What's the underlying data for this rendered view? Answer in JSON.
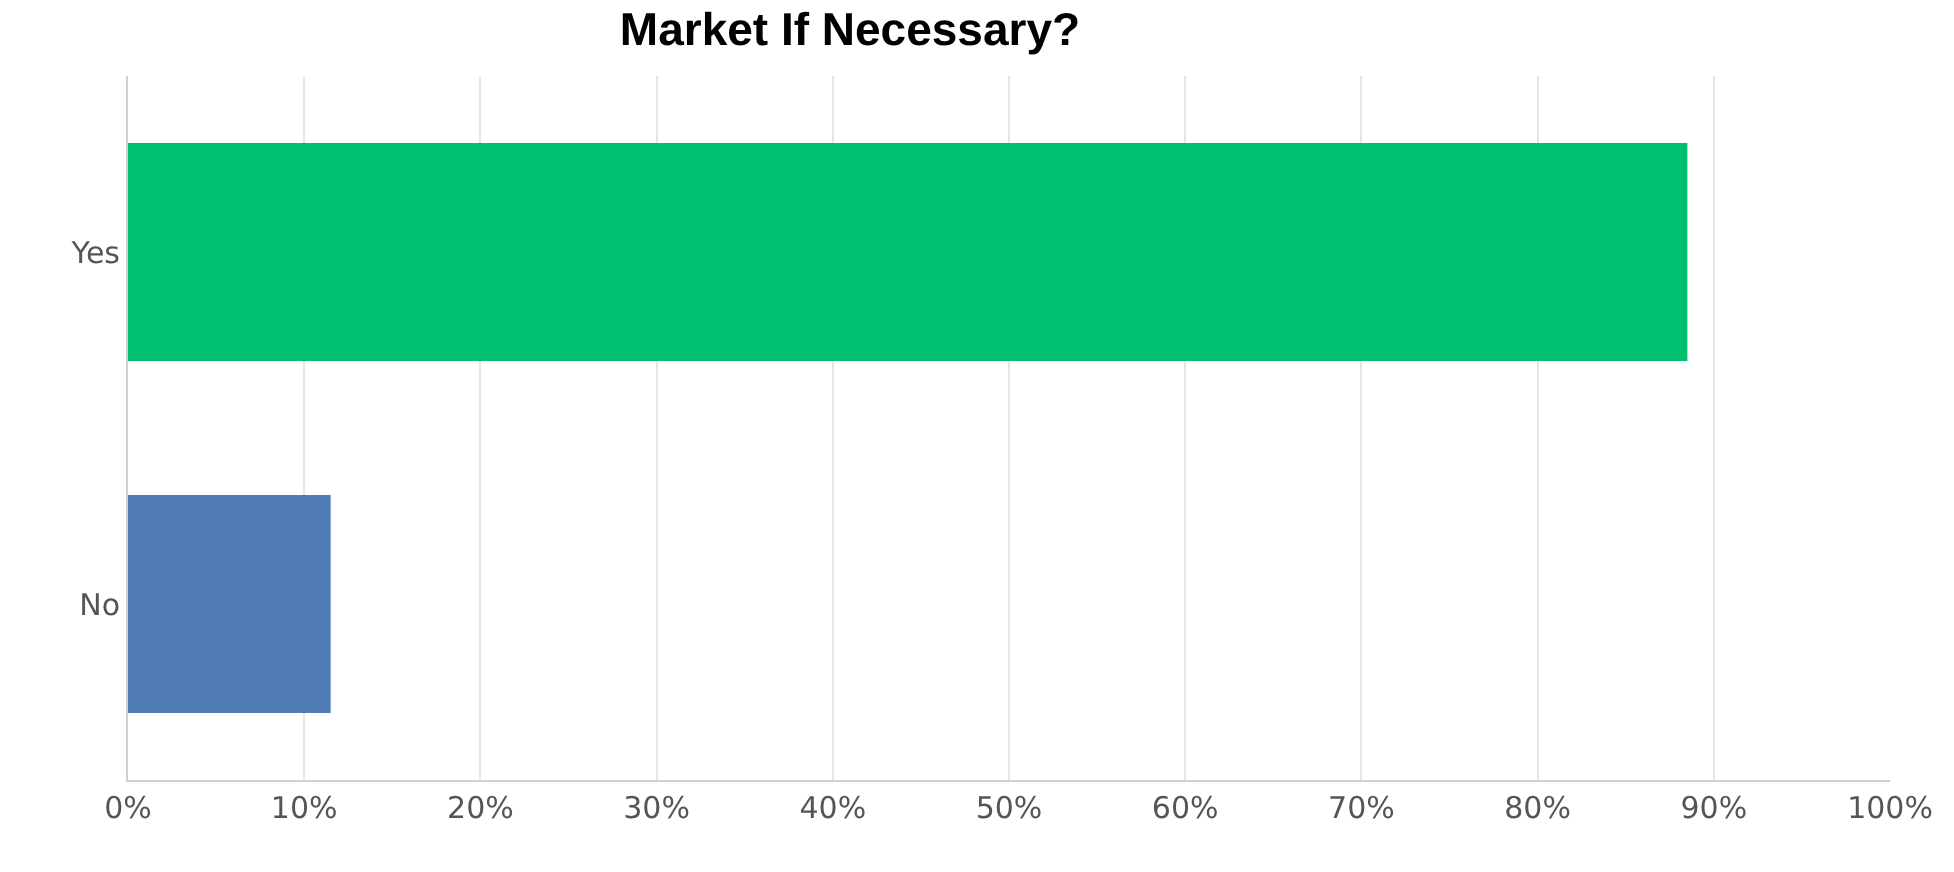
{
  "chart_data": {
    "type": "bar",
    "orientation": "horizontal",
    "title": "Market If Necessary?",
    "categories": [
      "Yes",
      "No"
    ],
    "values": [
      88.5,
      11.5
    ],
    "colors": [
      "#00bf6f",
      "#507cb6"
    ],
    "xlim": [
      0,
      100
    ],
    "xticks": [
      {
        "value": 0,
        "label": "0%"
      },
      {
        "value": 10,
        "label": "10%"
      },
      {
        "value": 20,
        "label": "20%"
      },
      {
        "value": 30,
        "label": "30%"
      },
      {
        "value": 40,
        "label": "40%"
      },
      {
        "value": 50,
        "label": "50%"
      },
      {
        "value": 60,
        "label": "60%"
      },
      {
        "value": 70,
        "label": "70%"
      },
      {
        "value": 80,
        "label": "80%"
      },
      {
        "value": 90,
        "label": "90%"
      },
      {
        "value": 100,
        "label": "100%"
      }
    ],
    "grid": "x"
  }
}
